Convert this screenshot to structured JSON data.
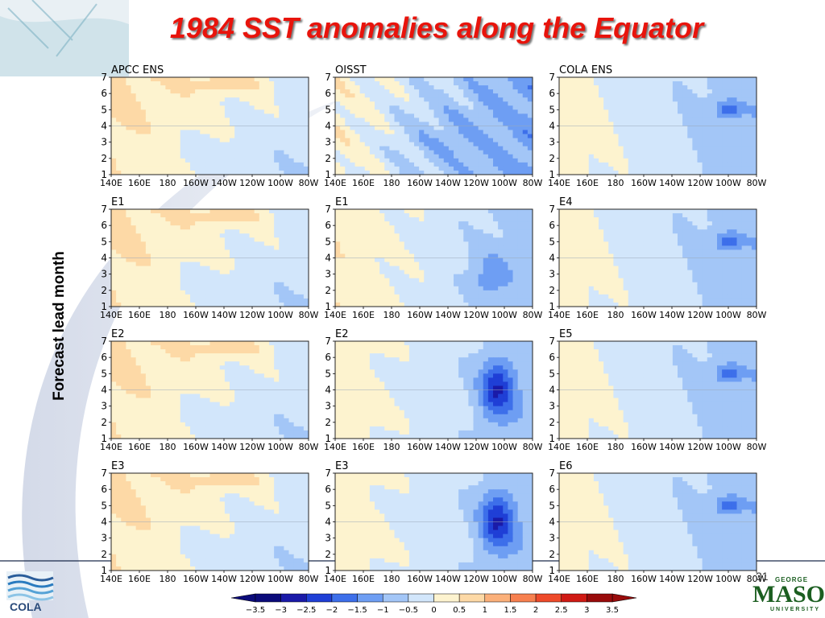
{
  "title": "1984 SST anomalies along the Equator",
  "page_number": "31",
  "logos": {
    "cola": "COLA",
    "gmu_top": "GEORGE",
    "gmu_main": "MASON",
    "gmu_bottom": "UNIVERSITY"
  },
  "colors": {
    "title": "#e8140c",
    "frame": "#1a2a4a"
  },
  "chart_data": {
    "type": "heatmap",
    "ylabel": "Forecast lead month",
    "x_ticks": [
      "140E",
      "160E",
      "180",
      "160W",
      "140W",
      "120W",
      "100W",
      "80W"
    ],
    "y_ticks": [
      "1",
      "2",
      "3",
      "4",
      "5",
      "6",
      "7"
    ],
    "ylim": [
      1,
      7
    ],
    "colorbar": {
      "labels": [
        "-3.5",
        "-3",
        "-2.5",
        "-2",
        "-1.5",
        "-1",
        "-0.5",
        "0",
        "0.5",
        "1",
        "1.5",
        "2",
        "2.5",
        "3",
        "3.5"
      ],
      "colors": [
        "#0b0b7a",
        "#1a1aa8",
        "#1f3fd6",
        "#3d6fea",
        "#6e9ef3",
        "#a3c6f7",
        "#d2e6fb",
        "#fdf3cf",
        "#fdd9a6",
        "#fbb07a",
        "#f7804f",
        "#ee4a2a",
        "#d01a14",
        "#990b0b"
      ]
    },
    "panels": [
      {
        "label": "APCC ENS",
        "pattern": "warm-west"
      },
      {
        "label": "OISST",
        "pattern": "obs"
      },
      {
        "label": "COLA ENS",
        "pattern": "cola"
      },
      {
        "label": "E1",
        "pattern": "warm-west"
      },
      {
        "label": "E1",
        "pattern": "e1"
      },
      {
        "label": "E4",
        "pattern": "cola"
      },
      {
        "label": "E2",
        "pattern": "warm-west"
      },
      {
        "label": "E2",
        "pattern": "strong"
      },
      {
        "label": "E5",
        "pattern": "cola"
      },
      {
        "label": "E3",
        "pattern": "warm-west"
      },
      {
        "label": "E3",
        "pattern": "strong"
      },
      {
        "label": "E6",
        "pattern": "cola"
      }
    ]
  }
}
